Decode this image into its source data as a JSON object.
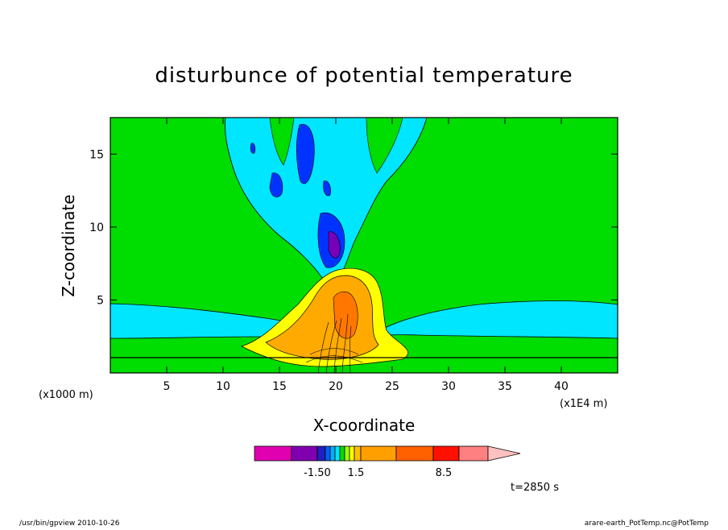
{
  "chart_data": {
    "type": "contour",
    "title": "disturbunce of potential temperature",
    "xlabel": "X-coordinate",
    "ylabel": "Z-coordinate",
    "x_unit_label": "(x1E4 m)",
    "y_unit_label": "(x1000 m)",
    "xlim": [
      0,
      45
    ],
    "ylim": [
      0,
      17.5
    ],
    "x_ticks": [
      "5",
      "10",
      "15",
      "20",
      "25",
      "30",
      "35",
      "40"
    ],
    "y_ticks": [
      "5",
      "10",
      "15"
    ],
    "x_tick_values": [
      5,
      10,
      15,
      20,
      25,
      30,
      35,
      40
    ],
    "y_tick_values": [
      5,
      10,
      15
    ],
    "legend_labels": [
      "-1.50",
      "1.5",
      "8.5"
    ],
    "time_label": "t=2850 s",
    "colors": {
      "background_field": "#00dd00",
      "cool_band": "#00e6ff",
      "warm_1": "#ffff00",
      "warm_2": "#ffaa00",
      "warm_3": "#ff7700",
      "cold_1": "#0033ff",
      "cold_2": "#0000aa",
      "cold_3": "#7700bb"
    },
    "colorbar": [
      "#e000b0",
      "#8000b0",
      "#2020c0",
      "#0060ff",
      "#00b0ff",
      "#00e6ff",
      "#00dd00",
      "#a0ff00",
      "#ffff00",
      "#ffc000",
      "#ffa000",
      "#ff6000",
      "#ff1000",
      "#ff8080",
      "#ffc0c0"
    ]
  },
  "footer": {
    "left": "/usr/bin/gpview  2010-10-26",
    "right": "arare-earth_PotTemp.nc@PotTemp"
  }
}
